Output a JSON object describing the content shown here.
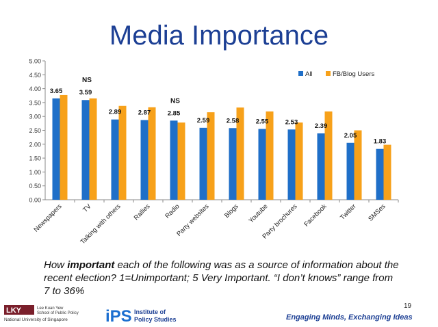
{
  "title": "Media Importance",
  "caption": {
    "prefix": "How ",
    "emphasis": "important",
    "rest": " each of the following was as a source of information about the recent election?  1=Unimportant; 5 Very Important. “I don’t knows” range from 7 to 36%"
  },
  "footer": {
    "page_number": "19",
    "tagline": "Engaging Minds, Exchanging Ideas",
    "lky_logo_text": "LKY",
    "lky_school_line1": "Lee Kuan Yew",
    "lky_school_line2": "School of Public Policy",
    "lky_university": "National University of Singapore",
    "ips_logo_text": "iPS",
    "ips_line1": "Institute of",
    "ips_line2": "Policy Studies"
  },
  "colors": {
    "title": "#1c3f94",
    "all": "#1f6fc8",
    "fb": "#f7a11a"
  },
  "chart_data": {
    "type": "bar",
    "categories": [
      "Newspapers",
      "TV",
      "Talking with others",
      "Rallies",
      "Radio",
      "Party websites",
      "Blogs",
      "Youtube",
      "Party brochures",
      "Facebook",
      "Twitter",
      "SMSes"
    ],
    "series": [
      {
        "name": "All",
        "values": [
          3.65,
          3.59,
          2.89,
          2.87,
          2.85,
          2.59,
          2.58,
          2.55,
          2.53,
          2.39,
          2.05,
          1.83
        ]
      },
      {
        "name": "FB/Blog Users",
        "values": [
          3.77,
          3.65,
          3.38,
          3.33,
          2.78,
          3.15,
          3.32,
          3.18,
          2.78,
          3.18,
          2.5,
          1.98
        ]
      }
    ],
    "data_labels": [
      "3.65",
      "3.59",
      "2.89",
      "2.87",
      "2.85",
      "2.59",
      "2.58",
      "2.55",
      "2.53",
      "2.39",
      "2.05",
      "1.83"
    ],
    "annotations": [
      {
        "category": "TV",
        "text": "NS"
      },
      {
        "category": "Radio",
        "text": "NS"
      }
    ],
    "ylim": [
      0,
      5
    ],
    "yticks": [
      "0.00",
      "0.50",
      "1.00",
      "1.50",
      "2.00",
      "2.50",
      "3.00",
      "3.50",
      "4.00",
      "4.50",
      "5.00"
    ],
    "grid": false,
    "legend_position": "top-right"
  }
}
